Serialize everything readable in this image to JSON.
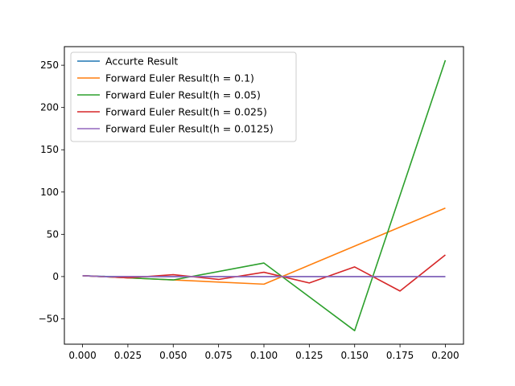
{
  "chart_data": {
    "type": "line",
    "title": "",
    "xlabel": "",
    "ylabel": "",
    "xlim": [
      -0.01,
      0.21
    ],
    "ylim": [
      -80,
      272
    ],
    "grid": false,
    "legend_position": "top-left",
    "x_ticks": [
      0.0,
      0.025,
      0.05,
      0.075,
      0.1,
      0.125,
      0.15,
      0.175,
      0.2
    ],
    "x_tick_labels": [
      "0.000",
      "0.025",
      "0.050",
      "0.075",
      "0.100",
      "0.125",
      "0.150",
      "0.175",
      "0.200"
    ],
    "y_ticks": [
      -50,
      0,
      50,
      100,
      150,
      200,
      250
    ],
    "y_tick_labels": [
      "−50",
      "0",
      "50",
      "100",
      "150",
      "200",
      "250"
    ],
    "series": [
      {
        "name": "Accurte Result",
        "color": "#1f77b4",
        "x": [
          0.0,
          0.0125,
          0.025,
          0.0375,
          0.05,
          0.0625,
          0.075,
          0.0875,
          0.1,
          0.1125,
          0.125,
          0.1375,
          0.15,
          0.1625,
          0.175,
          0.1875,
          0.2
        ],
        "y": [
          1,
          0.2,
          0.05,
          0.01,
          0,
          0,
          0,
          0,
          0,
          0,
          0,
          0,
          0,
          0,
          0,
          0,
          0
        ]
      },
      {
        "name": "Forward Euler Result(h = 0.1)",
        "color": "#ff7f0e",
        "x": [
          0.0,
          0.1,
          0.2
        ],
        "y": [
          1,
          -9,
          81
        ]
      },
      {
        "name": "Forward Euler Result(h = 0.05)",
        "color": "#2ca02c",
        "x": [
          0.0,
          0.05,
          0.1,
          0.15,
          0.2
        ],
        "y": [
          1,
          -4,
          16,
          -64,
          256
        ]
      },
      {
        "name": "Forward Euler Result(h = 0.025)",
        "color": "#d62728",
        "x": [
          0.0,
          0.025,
          0.05,
          0.075,
          0.1,
          0.125,
          0.15,
          0.175,
          0.2
        ],
        "y": [
          1,
          -1.5,
          2.25,
          -3.4,
          5.1,
          -7.6,
          11.4,
          -17.1,
          25.6
        ]
      },
      {
        "name": "Forward Euler Result(h = 0.0125)",
        "color": "#9467bd",
        "x": [
          0.0,
          0.0125,
          0.025,
          0.0375,
          0.05,
          0.0625,
          0.075,
          0.0875,
          0.1,
          0.1125,
          0.125,
          0.1375,
          0.15,
          0.1625,
          0.175,
          0.1875,
          0.2
        ],
        "y": [
          1,
          -0.25,
          0.06,
          -0.02,
          0,
          0,
          0,
          0,
          0,
          0,
          0,
          0,
          0,
          0,
          0,
          0,
          0
        ]
      }
    ]
  }
}
